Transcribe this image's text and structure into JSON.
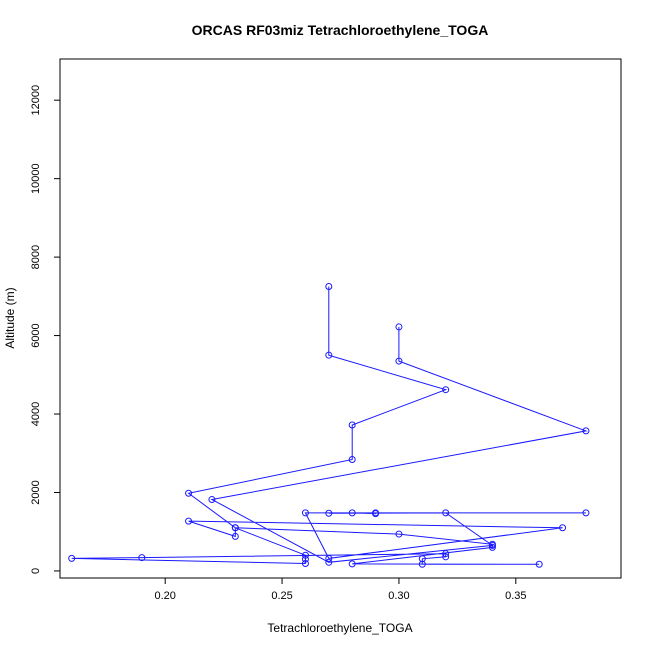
{
  "chart_data": {
    "type": "line",
    "title": "ORCAS RF03miz Tetrachloroethylene_TOGA",
    "xlabel": "Tetrachloroethylene_TOGA",
    "ylabel": "Altitude (m)",
    "xlim": [
      0.155,
      0.395
    ],
    "ylim": [
      -180,
      13050
    ],
    "xticks": [
      0.2,
      0.25,
      0.3,
      0.35
    ],
    "xtick_labels": [
      "0.20",
      "0.25",
      "0.30",
      "0.35"
    ],
    "yticks": [
      0,
      2000,
      4000,
      6000,
      8000,
      10000,
      12000
    ],
    "ytick_labels": [
      "0",
      "2000",
      "4000",
      "6000",
      "8000",
      "10000",
      "12000"
    ],
    "grid": false,
    "series": [
      {
        "color": "#1a1aff",
        "x": [
          0.27,
          0.27,
          0.32,
          0.28,
          0.28,
          0.21,
          0.23,
          0.26,
          0.26,
          0.26,
          0.16,
          0.19,
          0.32,
          0.32,
          0.31,
          0.31,
          0.36,
          0.28,
          0.34,
          0.34,
          0.3,
          0.23,
          0.23,
          0.21,
          0.37,
          0.27,
          0.26,
          0.38,
          0.29,
          0.29,
          0.28,
          0.27,
          0.32,
          0.34,
          0.27,
          0.22,
          0.38,
          0.3,
          0.3
        ],
        "y": [
          7250,
          5500,
          4620,
          3720,
          2840,
          1980,
          1100,
          400,
          300,
          190,
          320,
          340,
          440,
          360,
          310,
          170,
          170,
          180,
          600,
          680,
          940,
          1100,
          880,
          1270,
          1100,
          320,
          1480,
          1480,
          1480,
          1460,
          1480,
          1470,
          1480,
          650,
          220,
          1820,
          3570,
          5350,
          6220
        ]
      }
    ]
  }
}
